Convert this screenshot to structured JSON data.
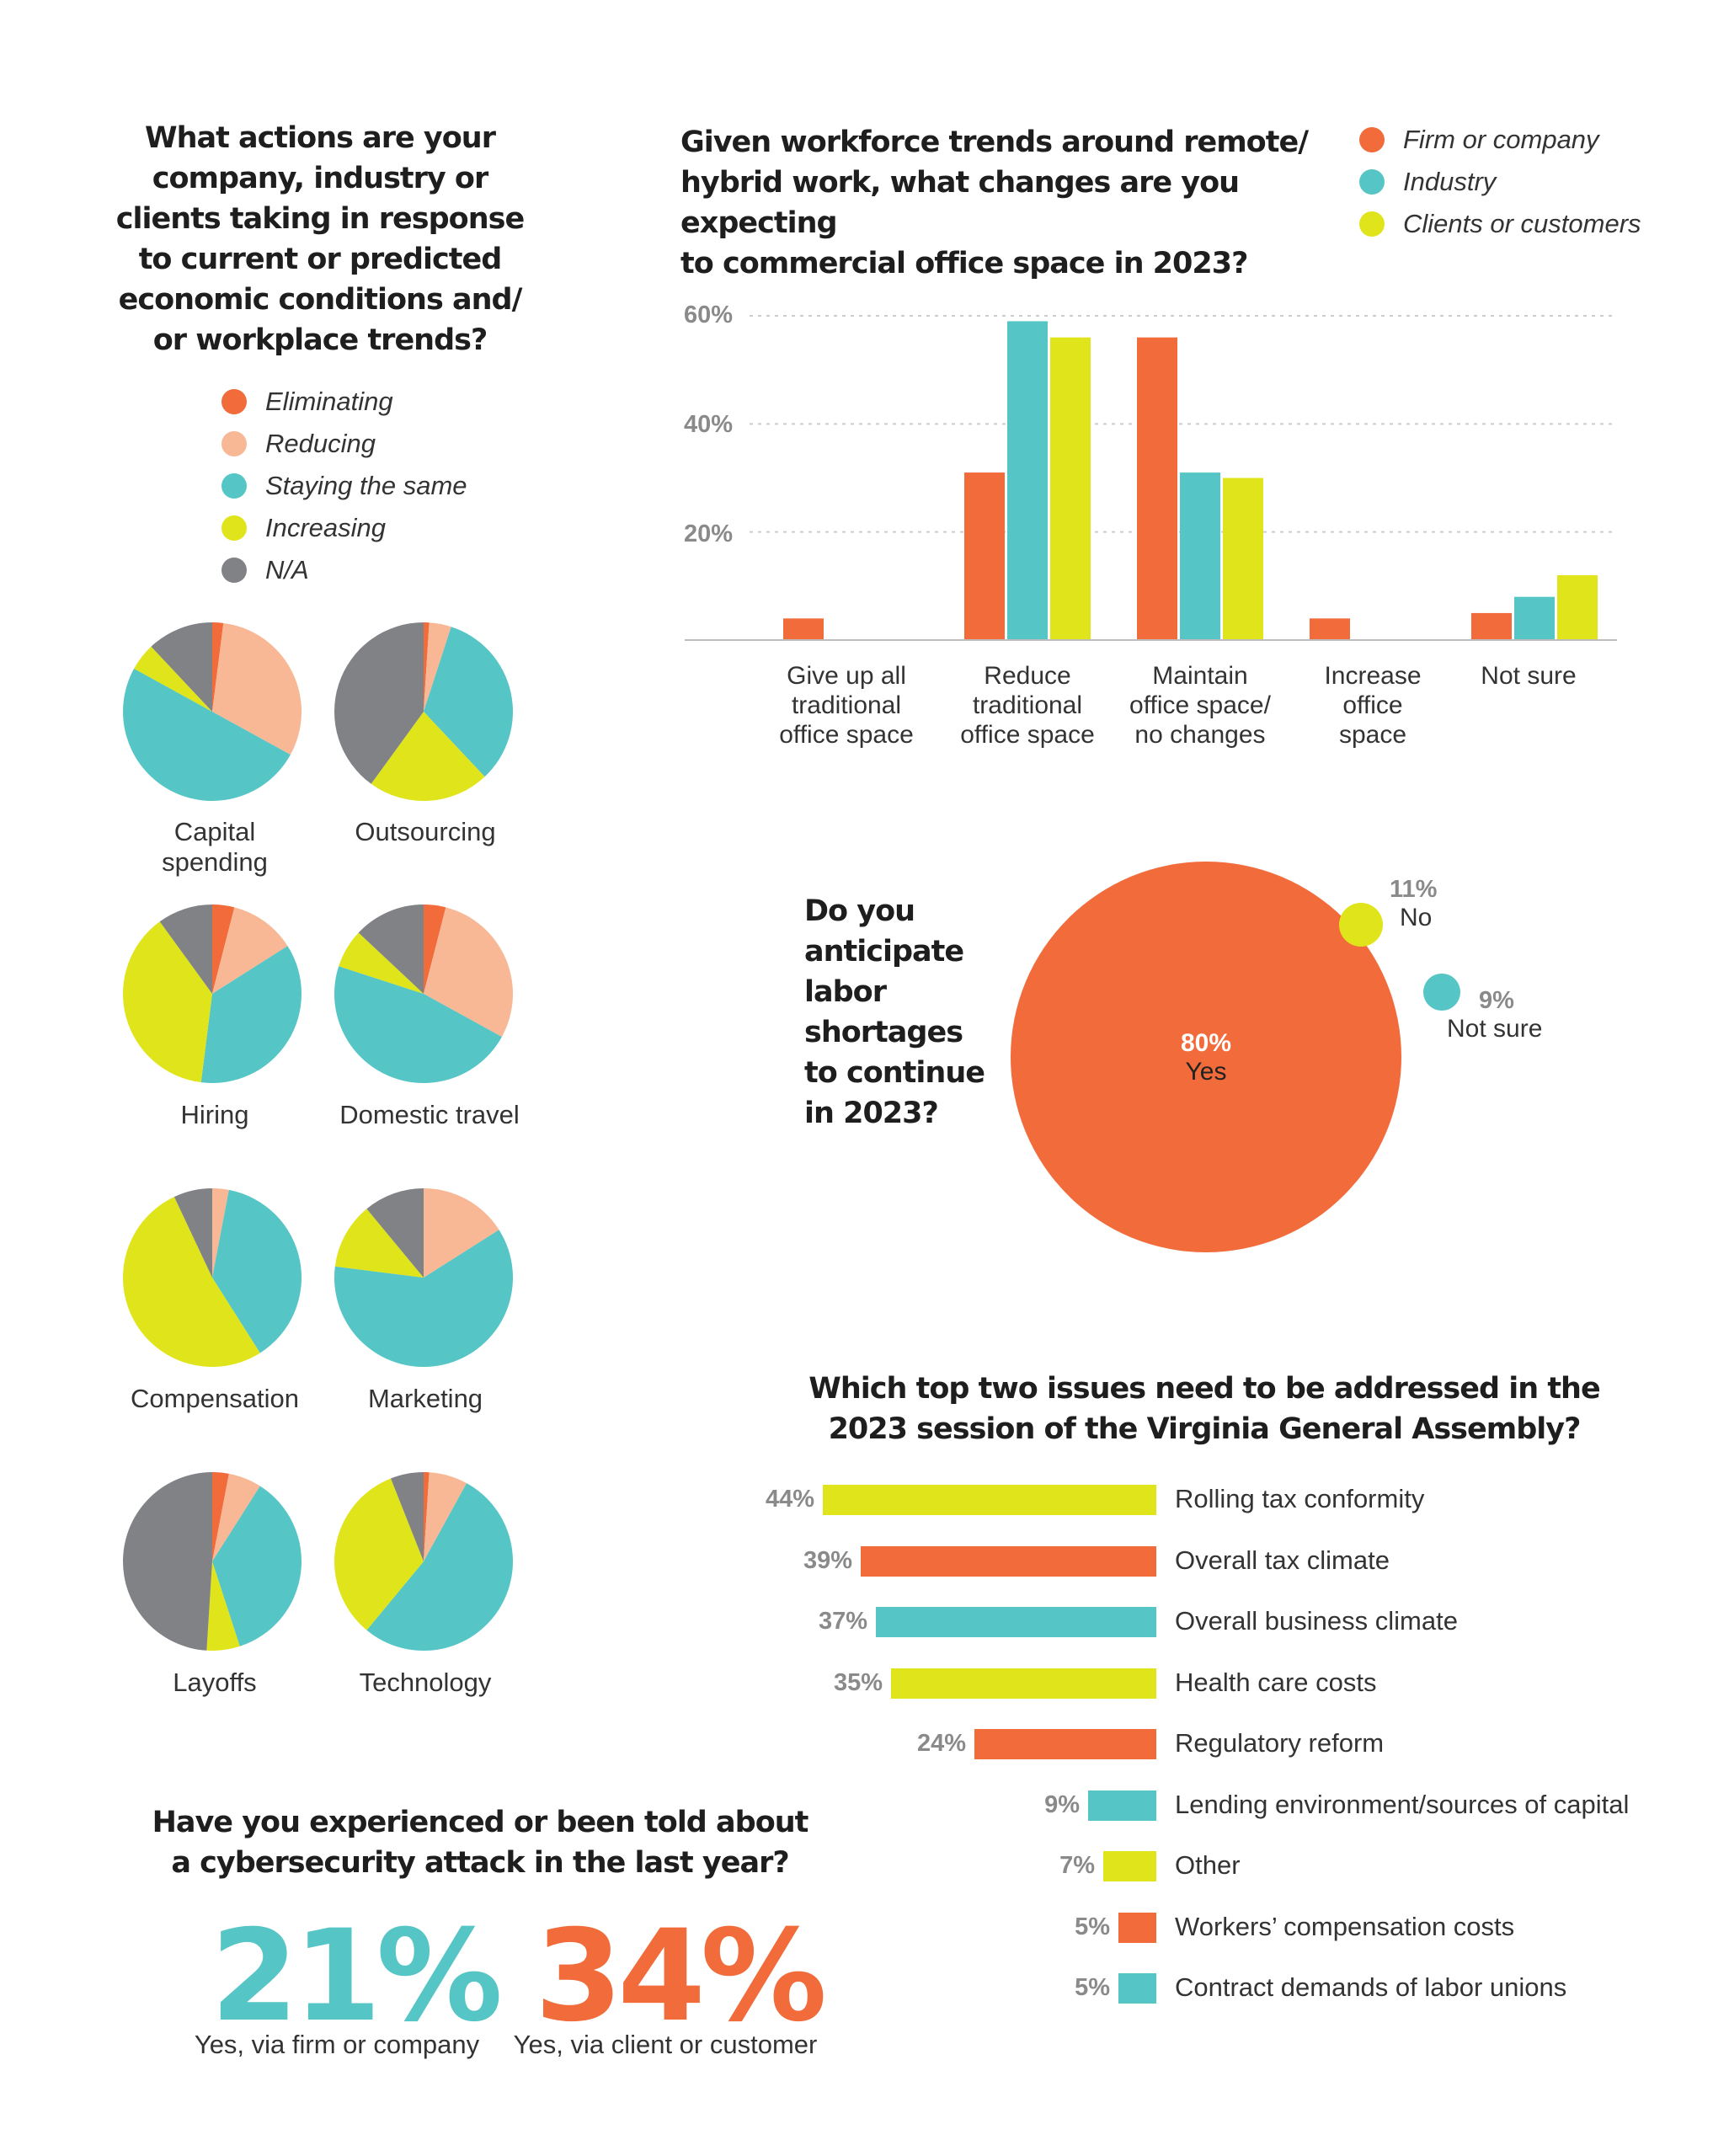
{
  "colors": {
    "orange": "#f26b3a",
    "peach": "#f8b896",
    "teal": "#56c5c5",
    "yellow": "#e0e41a",
    "gray": "#808285",
    "grid": "#cccccc",
    "muted_text": "#8a8a8a"
  },
  "actions": {
    "title_lines": [
      "What actions are your",
      "company, industry or",
      "clients taking in response",
      "to current or predicted",
      "economic conditions and/",
      "or workplace trends?"
    ],
    "legend": [
      {
        "label": "Eliminating",
        "color": "#f26b3a"
      },
      {
        "label": "Reducing",
        "color": "#f8b896"
      },
      {
        "label": "Staying the same",
        "color": "#56c5c5"
      },
      {
        "label": "Increasing",
        "color": "#e0e41a"
      },
      {
        "label": "N/A",
        "color": "#808285"
      }
    ]
  },
  "office": {
    "title_lines": [
      "Given workforce trends around remote/",
      "hybrid work, what changes are you expecting",
      "to commercial office space in 2023?"
    ],
    "legend": [
      {
        "label": "Firm or company",
        "color": "#f26b3a"
      },
      {
        "label": "Industry",
        "color": "#56c5c5"
      },
      {
        "label": "Clients or customers",
        "color": "#e0e41a"
      }
    ]
  },
  "labor": {
    "title_lines": [
      "Do you",
      "anticipate",
      "labor",
      "shortages",
      "to continue",
      "in 2023?"
    ],
    "yes_pct": "80%",
    "yes_label": "Yes",
    "no_pct": "11%",
    "no_label": "No",
    "notsure_pct": "9%",
    "notsure_label": "Not sure"
  },
  "issues": {
    "title_lines": [
      "Which top two issues need to be addressed in the",
      "2023 session of the Virginia General Assembly?"
    ]
  },
  "cyber": {
    "title_lines": [
      "Have you experienced or been told about",
      "a cybersecurity attack in the last year?"
    ],
    "firm_pct": "21%",
    "firm_label": "Yes, via firm or company",
    "client_pct": "34%",
    "client_label": "Yes, via client or customer"
  },
  "chart_data": [
    {
      "type": "pie",
      "title": "What actions are your company, industry or clients taking in response to current or predicted economic conditions and/or workplace trends?",
      "legend": [
        "Eliminating",
        "Reducing",
        "Staying the same",
        "Increasing",
        "N/A"
      ],
      "pies": [
        {
          "label": "Capital spending",
          "values": [
            2,
            31,
            50,
            5,
            12
          ]
        },
        {
          "label": "Outsourcing",
          "values": [
            1,
            4,
            33,
            22,
            40
          ]
        },
        {
          "label": "Hiring",
          "values": [
            4,
            12,
            36,
            38,
            10
          ]
        },
        {
          "label": "Domestic travel",
          "values": [
            4,
            29,
            47,
            7,
            13
          ]
        },
        {
          "label": "Compensation",
          "values": [
            0,
            3,
            38,
            52,
            7
          ]
        },
        {
          "label": "Marketing",
          "values": [
            0,
            16,
            61,
            12,
            11
          ]
        },
        {
          "label": "Layoffs",
          "values": [
            3,
            6,
            36,
            6,
            49
          ]
        },
        {
          "label": "Technology",
          "values": [
            1,
            7,
            53,
            33,
            6
          ]
        }
      ]
    },
    {
      "type": "bar",
      "title": "Given workforce trends around remote/hybrid work, what changes are you expecting to commercial office space in 2023?",
      "categories": [
        [
          "Give up all",
          "traditional",
          "office space"
        ],
        [
          "Reduce",
          "traditional",
          "office space"
        ],
        [
          "Maintain",
          "office space/",
          "no changes"
        ],
        [
          "Increase",
          "office",
          "space"
        ],
        [
          "Not sure"
        ]
      ],
      "series": [
        {
          "name": "Firm or company",
          "values": [
            4,
            31,
            56,
            4,
            5
          ]
        },
        {
          "name": "Industry",
          "values": [
            0,
            59,
            31,
            0,
            8
          ]
        },
        {
          "name": "Clients or customers",
          "values": [
            0,
            56,
            30,
            0,
            12
          ]
        }
      ],
      "yticks": [
        "60%",
        "40%",
        "20%"
      ],
      "ylim": [
        0,
        60
      ],
      "grid": true,
      "legend_position": "top-right"
    },
    {
      "type": "bubble",
      "title": "Do you anticipate labor shortages to continue in 2023?",
      "labels": [
        "Yes",
        "No",
        "Not sure"
      ],
      "values": [
        80,
        11,
        9
      ]
    },
    {
      "type": "bar",
      "orientation": "horizontal",
      "title": "Which top two issues need to be addressed in the 2023 session of the Virginia General Assembly?",
      "items": [
        {
          "label": "Rolling tax conformity",
          "value": 44,
          "text": "44%",
          "color": "#e0e41a"
        },
        {
          "label": "Overall tax climate",
          "value": 39,
          "text": "39%",
          "color": "#f26b3a"
        },
        {
          "label": "Overall business climate",
          "value": 37,
          "text": "37%",
          "color": "#56c5c5"
        },
        {
          "label": "Health care costs",
          "value": 35,
          "text": "35%",
          "color": "#e0e41a"
        },
        {
          "label": "Regulatory reform",
          "value": 24,
          "text": "24%",
          "color": "#f26b3a"
        },
        {
          "label": "Lending environment/sources of capital",
          "value": 9,
          "text": "9%",
          "color": "#56c5c5"
        },
        {
          "label": "Other",
          "value": 7,
          "text": "7%",
          "color": "#e0e41a"
        },
        {
          "label": "Workers’ compensation costs",
          "value": 5,
          "text": "5%",
          "color": "#f26b3a"
        },
        {
          "label": "Contract demands of labor unions",
          "value": 5,
          "text": "5%",
          "color": "#56c5c5"
        }
      ]
    },
    {
      "type": "table",
      "title": "Have you experienced or been told about a cybersecurity attack in the last year?",
      "rows": [
        {
          "label": "Yes, via firm or company",
          "value": 21
        },
        {
          "label": "Yes, via client or customer",
          "value": 34
        }
      ]
    }
  ]
}
